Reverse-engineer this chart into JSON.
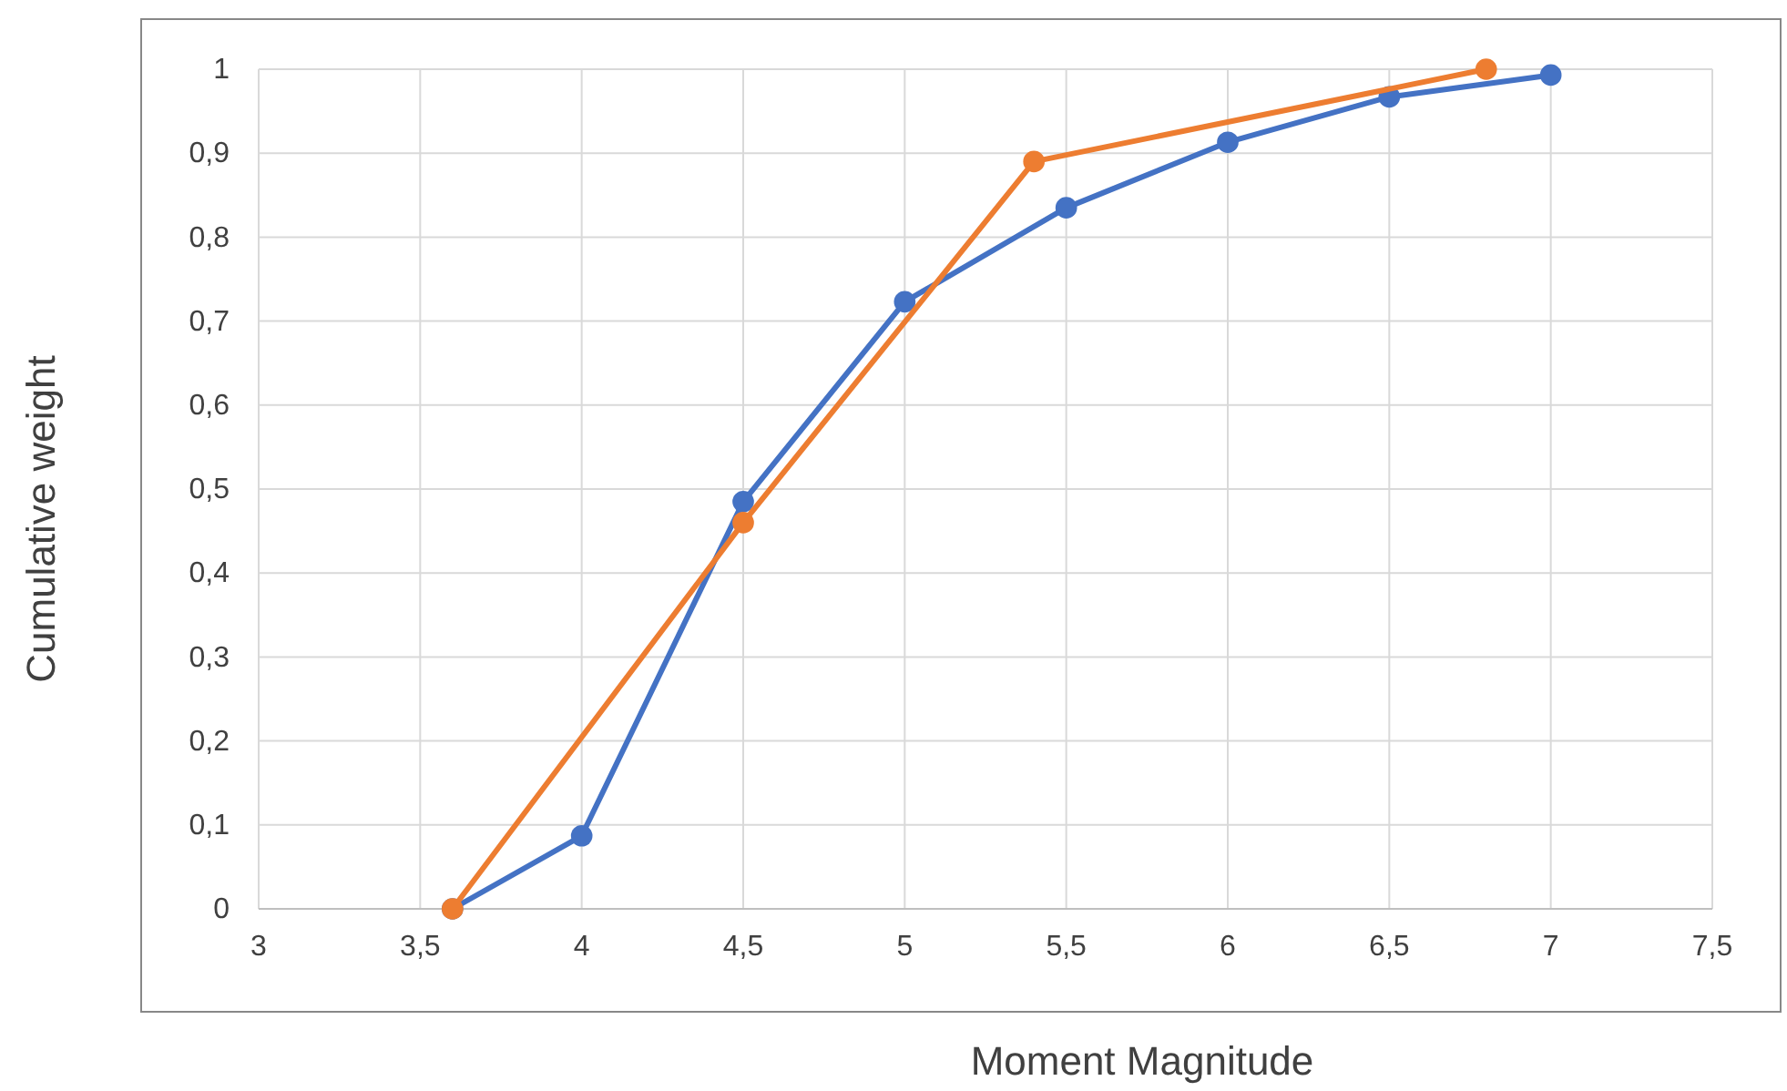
{
  "chart_data": {
    "type": "line",
    "xlabel": "Moment Magnitude",
    "ylabel": "Cumulative weight",
    "xlim": [
      3,
      7.5
    ],
    "xticks": [
      3,
      {
        "value": 3.5,
        "label": "3,5"
      },
      4,
      {
        "value": 4.5,
        "label": "4,5"
      },
      5,
      {
        "value": 5.5,
        "label": "5,5"
      },
      6,
      {
        "value": 6.5,
        "label": "6,5"
      },
      7,
      {
        "value": 7.5,
        "label": "7,5"
      }
    ],
    "ylim": [
      0,
      1
    ],
    "yticks": [
      0,
      {
        "value": 0.1,
        "label": "0,1"
      },
      {
        "value": 0.2,
        "label": "0,2"
      },
      {
        "value": 0.3,
        "label": "0,3"
      },
      {
        "value": 0.4,
        "label": "0,4"
      },
      {
        "value": 0.5,
        "label": "0,5"
      },
      {
        "value": 0.6,
        "label": "0,6"
      },
      {
        "value": 0.7,
        "label": "0,7"
      },
      {
        "value": 0.8,
        "label": "0,8"
      },
      {
        "value": 0.9,
        "label": "0,9"
      },
      1
    ],
    "grid": true,
    "marker": "circle",
    "line_style": "solid",
    "series": [
      {
        "color": "#4472c4",
        "x": [
          3.6,
          4,
          4.5,
          5,
          5.5,
          6,
          6.5,
          7
        ],
        "values": [
          0,
          0.087,
          0.485,
          0.723,
          0.835,
          0.913,
          0.967,
          0.993
        ]
      },
      {
        "color": "#ed7d31",
        "x": [
          3.6,
          4.5,
          5.4,
          6.8
        ],
        "values": [
          0,
          0.46,
          0.89,
          1
        ]
      }
    ]
  }
}
